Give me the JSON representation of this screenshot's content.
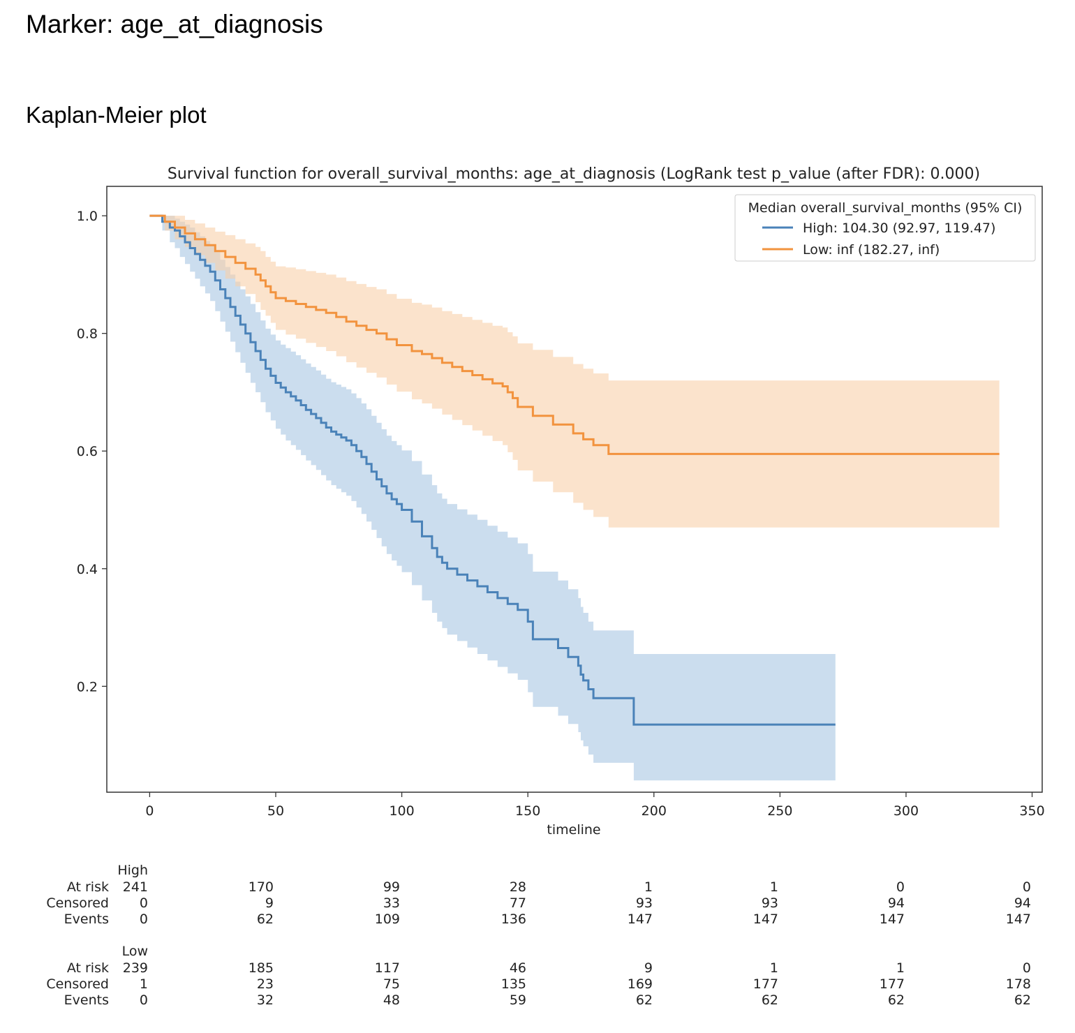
{
  "header": {
    "title": "Marker: age_at_diagnosis",
    "subtitle": "Kaplan-Meier plot"
  },
  "chart_data": {
    "type": "line",
    "title": "Survival function for overall_survival_months: age_at_diagnosis (LogRank test p_value (after FDR): 0.000)",
    "xlabel": "timeline",
    "ylabel": "",
    "xlim": [
      -17,
      354
    ],
    "ylim": [
      0.02,
      1.05
    ],
    "xticks": [
      0,
      50,
      100,
      150,
      200,
      250,
      300,
      350
    ],
    "yticks": [
      0.2,
      0.4,
      0.6,
      0.8,
      1.0
    ],
    "xtick_labels": [
      "0",
      "50",
      "100",
      "150",
      "200",
      "250",
      "300",
      "350"
    ],
    "ytick_labels": [
      "0.2",
      "0.4",
      "0.6",
      "0.8",
      "1.0"
    ],
    "grid": false,
    "legend": {
      "title": "Median overall_survival_months (95% CI)",
      "position": "top-right"
    },
    "series": [
      {
        "name": "High: 104.30 (92.97, 119.47)",
        "color": "#4a82b8",
        "band_color": "#a9c6e2",
        "x": [
          0,
          5,
          8,
          10,
          12,
          14,
          16,
          18,
          20,
          22,
          24,
          26,
          28,
          30,
          32,
          34,
          36,
          38,
          40,
          42,
          44,
          46,
          48,
          50,
          52,
          54,
          56,
          58,
          60,
          62,
          64,
          66,
          68,
          70,
          72,
          74,
          76,
          78,
          80,
          82,
          84,
          86,
          88,
          90,
          92,
          94,
          96,
          98,
          100,
          104,
          108,
          112,
          114,
          116,
          118,
          122,
          126,
          130,
          134,
          138,
          142,
          146,
          150,
          152,
          162,
          166,
          170,
          171,
          172,
          174,
          176,
          192,
          272
        ],
        "y": [
          1.0,
          0.99,
          0.98,
          0.975,
          0.965,
          0.955,
          0.945,
          0.935,
          0.925,
          0.915,
          0.905,
          0.89,
          0.875,
          0.86,
          0.845,
          0.83,
          0.815,
          0.8,
          0.785,
          0.77,
          0.755,
          0.74,
          0.728,
          0.716,
          0.708,
          0.7,
          0.693,
          0.686,
          0.678,
          0.67,
          0.663,
          0.656,
          0.648,
          0.64,
          0.633,
          0.628,
          0.623,
          0.618,
          0.61,
          0.6,
          0.59,
          0.578,
          0.565,
          0.552,
          0.54,
          0.528,
          0.518,
          0.51,
          0.5,
          0.48,
          0.455,
          0.435,
          0.42,
          0.41,
          0.4,
          0.39,
          0.38,
          0.37,
          0.36,
          0.35,
          0.34,
          0.33,
          0.31,
          0.28,
          0.265,
          0.25,
          0.235,
          0.22,
          0.21,
          0.195,
          0.18,
          0.135,
          0.135
        ],
        "lower": [
          1.0,
          0.975,
          0.955,
          0.945,
          0.93,
          0.918,
          0.905,
          0.893,
          0.88,
          0.868,
          0.855,
          0.838,
          0.82,
          0.803,
          0.786,
          0.768,
          0.75,
          0.733,
          0.716,
          0.7,
          0.683,
          0.666,
          0.652,
          0.638,
          0.628,
          0.618,
          0.61,
          0.602,
          0.593,
          0.584,
          0.576,
          0.568,
          0.559,
          0.55,
          0.542,
          0.536,
          0.53,
          0.524,
          0.515,
          0.504,
          0.493,
          0.48,
          0.466,
          0.452,
          0.438,
          0.425,
          0.414,
          0.405,
          0.394,
          0.372,
          0.346,
          0.325,
          0.31,
          0.299,
          0.288,
          0.277,
          0.266,
          0.255,
          0.244,
          0.233,
          0.222,
          0.211,
          0.19,
          0.165,
          0.15,
          0.136,
          0.122,
          0.108,
          0.098,
          0.084,
          0.07,
          0.04,
          0.04
        ],
        "upper": [
          1.0,
          1.0,
          1.0,
          0.995,
          0.99,
          0.985,
          0.98,
          0.972,
          0.965,
          0.957,
          0.95,
          0.938,
          0.925,
          0.913,
          0.9,
          0.888,
          0.875,
          0.863,
          0.85,
          0.836,
          0.822,
          0.808,
          0.798,
          0.788,
          0.781,
          0.775,
          0.769,
          0.763,
          0.756,
          0.749,
          0.743,
          0.737,
          0.73,
          0.723,
          0.717,
          0.713,
          0.709,
          0.705,
          0.698,
          0.69,
          0.681,
          0.671,
          0.66,
          0.648,
          0.637,
          0.626,
          0.617,
          0.61,
          0.601,
          0.583,
          0.56,
          0.542,
          0.528,
          0.519,
          0.51,
          0.501,
          0.492,
          0.483,
          0.473,
          0.463,
          0.453,
          0.443,
          0.425,
          0.395,
          0.38,
          0.365,
          0.35,
          0.335,
          0.325,
          0.31,
          0.295,
          0.255,
          0.255
        ]
      },
      {
        "name": "Low: inf (182.27, inf)",
        "color": "#f2933e",
        "band_color": "#f8d0aa",
        "x": [
          0,
          6,
          10,
          14,
          18,
          22,
          26,
          30,
          34,
          38,
          42,
          44,
          46,
          48,
          50,
          54,
          58,
          62,
          66,
          70,
          74,
          78,
          82,
          86,
          90,
          94,
          98,
          104,
          108,
          112,
          116,
          120,
          124,
          128,
          132,
          136,
          140,
          142,
          144,
          146,
          152,
          160,
          168,
          172,
          176,
          182,
          337
        ],
        "y": [
          1.0,
          0.99,
          0.98,
          0.97,
          0.96,
          0.95,
          0.94,
          0.93,
          0.92,
          0.91,
          0.9,
          0.89,
          0.88,
          0.87,
          0.86,
          0.855,
          0.85,
          0.845,
          0.84,
          0.835,
          0.828,
          0.82,
          0.813,
          0.806,
          0.8,
          0.79,
          0.78,
          0.77,
          0.765,
          0.758,
          0.75,
          0.743,
          0.736,
          0.729,
          0.722,
          0.715,
          0.71,
          0.7,
          0.69,
          0.675,
          0.66,
          0.645,
          0.63,
          0.62,
          0.61,
          0.595,
          0.595
        ],
        "lower": [
          1.0,
          0.975,
          0.96,
          0.947,
          0.933,
          0.92,
          0.907,
          0.893,
          0.88,
          0.867,
          0.853,
          0.84,
          0.83,
          0.818,
          0.806,
          0.798,
          0.791,
          0.784,
          0.777,
          0.77,
          0.761,
          0.751,
          0.742,
          0.733,
          0.725,
          0.713,
          0.701,
          0.688,
          0.681,
          0.672,
          0.662,
          0.653,
          0.644,
          0.635,
          0.626,
          0.617,
          0.61,
          0.598,
          0.585,
          0.567,
          0.548,
          0.53,
          0.512,
          0.5,
          0.488,
          0.47,
          0.47
        ],
        "upper": [
          1.0,
          1.0,
          1.0,
          0.993,
          0.987,
          0.98,
          0.973,
          0.967,
          0.96,
          0.953,
          0.947,
          0.94,
          0.93,
          0.922,
          0.914,
          0.912,
          0.909,
          0.906,
          0.903,
          0.9,
          0.895,
          0.889,
          0.884,
          0.879,
          0.875,
          0.867,
          0.859,
          0.852,
          0.849,
          0.844,
          0.838,
          0.833,
          0.828,
          0.823,
          0.818,
          0.813,
          0.81,
          0.802,
          0.795,
          0.783,
          0.772,
          0.76,
          0.748,
          0.74,
          0.732,
          0.72,
          0.72
        ]
      }
    ],
    "risk_table": {
      "times": [
        0,
        50,
        100,
        150,
        200,
        250,
        300,
        350
      ],
      "groups": [
        {
          "name": "High",
          "rows": [
            {
              "label": "At risk",
              "values": [
                "241",
                "170",
                "99",
                "28",
                "1",
                "1",
                "0",
                "0"
              ]
            },
            {
              "label": "Censored",
              "values": [
                "0",
                "9",
                "33",
                "77",
                "93",
                "93",
                "94",
                "94"
              ]
            },
            {
              "label": "Events",
              "values": [
                "0",
                "62",
                "109",
                "136",
                "147",
                "147",
                "147",
                "147"
              ]
            }
          ]
        },
        {
          "name": "Low",
          "rows": [
            {
              "label": "At risk",
              "values": [
                "239",
                "185",
                "117",
                "46",
                "9",
                "1",
                "1",
                "0"
              ]
            },
            {
              "label": "Censored",
              "values": [
                "1",
                "23",
                "75",
                "135",
                "169",
                "177",
                "177",
                "178"
              ]
            },
            {
              "label": "Events",
              "values": [
                "0",
                "32",
                "48",
                "59",
                "62",
                "62",
                "62",
                "62"
              ]
            }
          ]
        }
      ]
    }
  }
}
